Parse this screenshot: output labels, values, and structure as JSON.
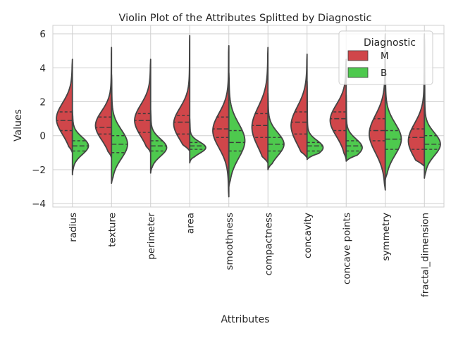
{
  "chart_data": {
    "type": "violin",
    "title": "Violin Plot of the Attributes Splitted by Diagnostic",
    "xlabel": "Attributes",
    "ylabel": "Values",
    "ylim": [
      -4.2,
      6.5
    ],
    "yticks": [
      -4,
      -2,
      0,
      2,
      4,
      6
    ],
    "grid": true,
    "split": true,
    "inner": "quartile",
    "legend": {
      "title": "Diagnostic",
      "placement": "top-right",
      "entries": [
        {
          "label": "M",
          "color": "#d0464a"
        },
        {
          "label": "B",
          "color": "#4ec94e"
        }
      ]
    },
    "categories": [
      "radius",
      "texture",
      "perimeter",
      "area",
      "smoothness",
      "compactness",
      "concavity",
      "concave points",
      "symmetry",
      "fractal_dimension"
    ],
    "series": [
      {
        "name": "M",
        "color": "#d0464a",
        "min": [
          -1.0,
          -1.3,
          -1.0,
          -0.9,
          -3.6,
          -1.6,
          -1.3,
          -1.4,
          -3.2,
          -1.8
        ],
        "q1": [
          0.3,
          0.1,
          0.2,
          0.1,
          -0.1,
          -0.1,
          0.1,
          0.3,
          -0.3,
          -0.8
        ],
        "median": [
          0.9,
          0.5,
          0.9,
          0.8,
          0.4,
          0.6,
          0.8,
          1.0,
          0.3,
          -0.1
        ],
        "q3": [
          1.4,
          1.1,
          1.3,
          1.2,
          1.1,
          1.3,
          1.4,
          1.4,
          1.0,
          0.4
        ],
        "max": [
          4.5,
          5.2,
          4.5,
          5.9,
          5.3,
          5.2,
          4.8,
          4.5,
          6.0,
          6.0
        ],
        "mode": [
          1.0,
          0.6,
          0.9,
          0.7,
          0.3,
          0.5,
          0.6,
          0.9,
          0.1,
          -0.3
        ]
      },
      {
        "name": "B",
        "color": "#4ec94e",
        "min": [
          -2.3,
          -2.8,
          -2.2,
          -1.6,
          -3.0,
          -2.0,
          -1.4,
          -1.5,
          -2.6,
          -2.5
        ],
        "q1": [
          -0.9,
          -1.0,
          -0.9,
          -0.8,
          -0.9,
          -0.9,
          -0.9,
          -0.9,
          -0.8,
          -0.8
        ],
        "median": [
          -0.6,
          -0.5,
          -0.6,
          -0.6,
          -0.4,
          -0.5,
          -0.6,
          -0.6,
          -0.2,
          -0.5
        ],
        "q3": [
          -0.3,
          0.0,
          -0.3,
          -0.4,
          0.3,
          -0.1,
          -0.4,
          -0.3,
          0.3,
          0.0
        ],
        "max": [
          1.5,
          3.6,
          1.5,
          1.0,
          3.7,
          2.5,
          3.2,
          2.4,
          4.3,
          5.7
        ],
        "mode": [
          -0.6,
          -0.5,
          -0.7,
          -0.7,
          -0.3,
          -0.5,
          -0.7,
          -0.7,
          -0.2,
          -0.5
        ]
      }
    ]
  }
}
